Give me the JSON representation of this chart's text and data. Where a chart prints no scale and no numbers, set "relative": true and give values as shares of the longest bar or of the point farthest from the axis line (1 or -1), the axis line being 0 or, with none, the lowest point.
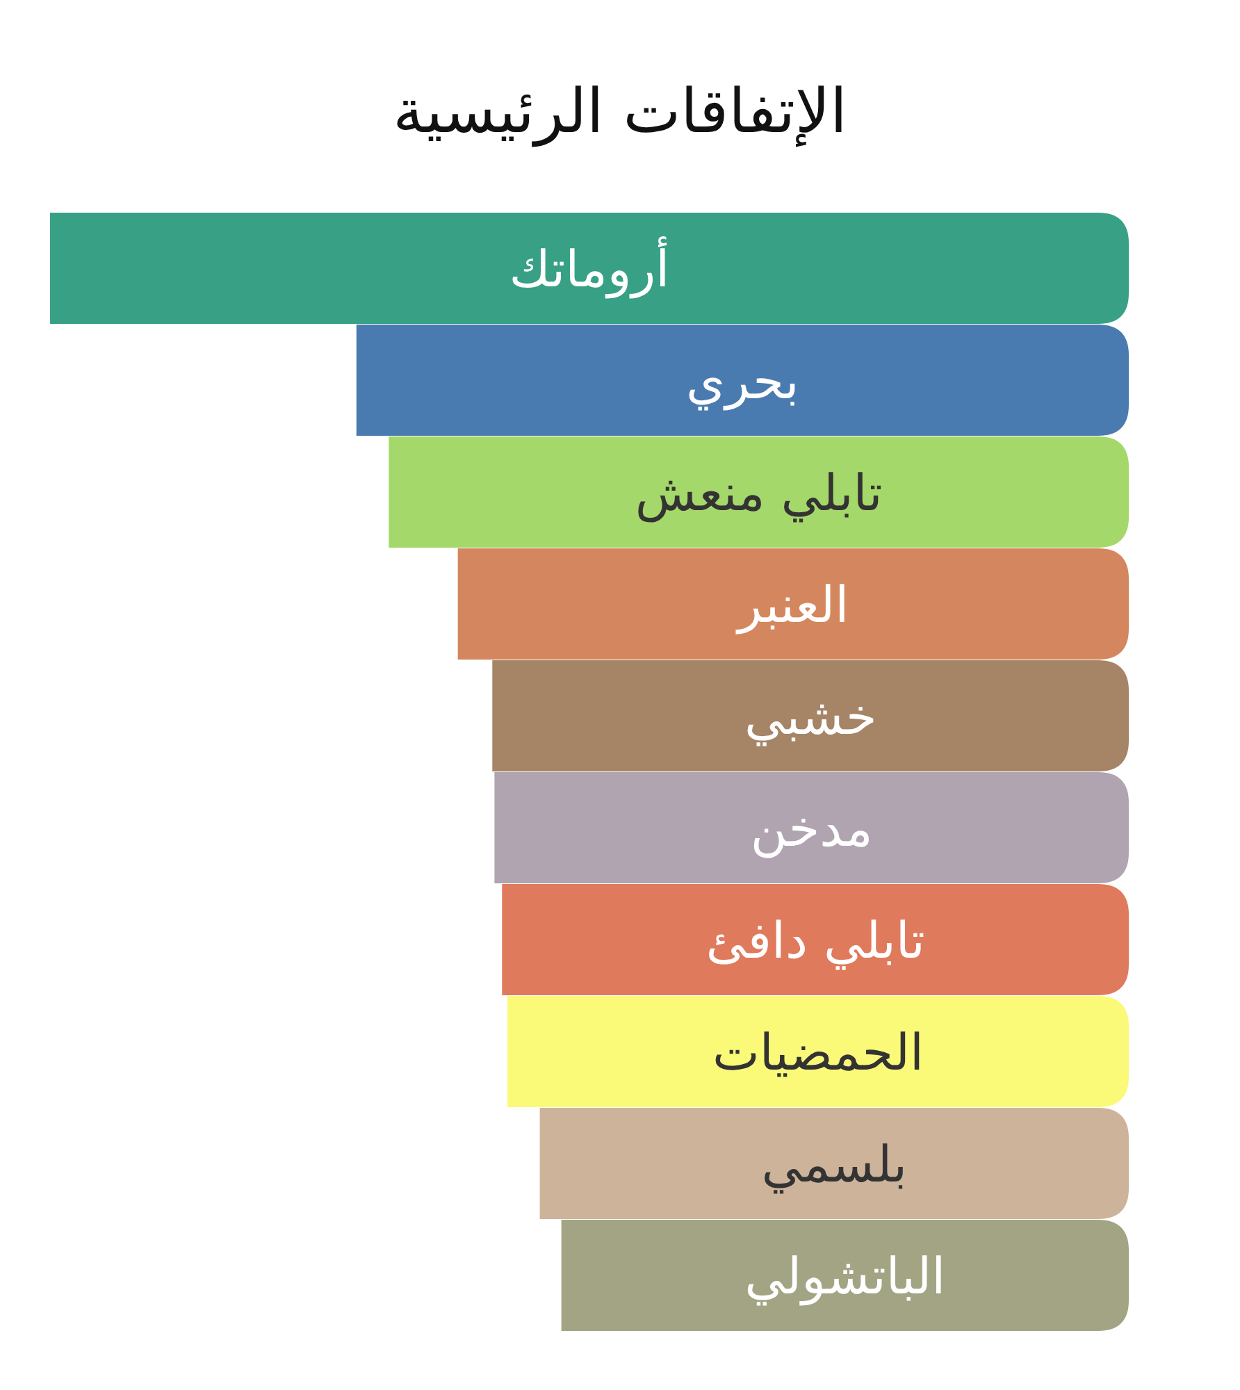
{
  "chart_data": {
    "type": "bar",
    "orientation": "horizontal",
    "relative": true,
    "title": "الإتفاقات الرئيسية",
    "categories": [
      "أروماتك",
      "بحري",
      "تابلي منعش",
      "العنبر",
      "خشبي",
      "مدخن",
      "تابلي دافئ",
      "الحمضيات",
      "بلسمي",
      "الباتشولي"
    ],
    "values": [
      1,
      0.716,
      0.686,
      0.622,
      0.59,
      0.588,
      0.581,
      0.576,
      0.546,
      0.526
    ],
    "colors": [
      "#38a085",
      "#4a7bb0",
      "#a5d86a",
      "#d4875e",
      "#a58566",
      "#b0a4b0",
      "#e07a5c",
      "#fafa78",
      "#cdb39a",
      "#a3a483"
    ]
  }
}
